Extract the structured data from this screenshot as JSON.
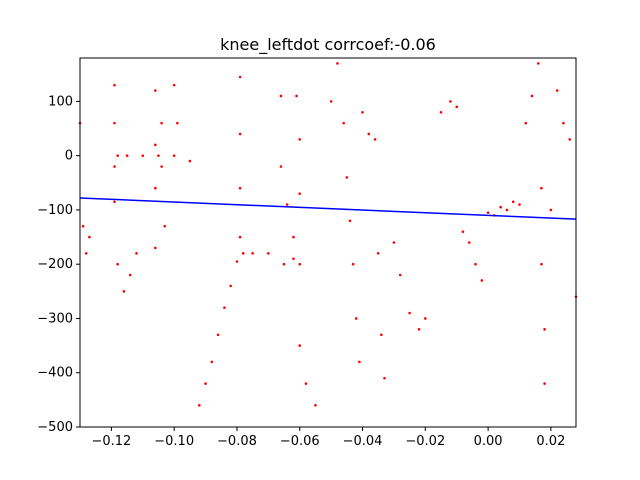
{
  "chart_data": {
    "type": "scatter",
    "title": "knee_leftdot corrcoef:-0.06",
    "xlabel": "",
    "ylabel": "",
    "xlim": [
      -0.13,
      0.028
    ],
    "ylim": [
      -500,
      180
    ],
    "x_ticks": [
      -0.12,
      -0.1,
      -0.08,
      -0.06,
      -0.04,
      -0.02,
      0.0,
      0.02
    ],
    "x_tick_labels": [
      "−0.12",
      "−0.10",
      "−0.08",
      "−0.06",
      "−0.04",
      "−0.02",
      "0.00",
      "0.02"
    ],
    "y_ticks": [
      -500,
      -400,
      -300,
      -200,
      -100,
      0,
      100
    ],
    "y_tick_labels": [
      "−500",
      "−400",
      "−300",
      "−200",
      "−100",
      "0",
      "100"
    ],
    "grid": false,
    "series": [
      {
        "kind": "scatter",
        "color": "#ff0000",
        "points": [
          [
            -0.13,
            60
          ],
          [
            -0.129,
            -130
          ],
          [
            -0.128,
            -180
          ],
          [
            -0.127,
            -150
          ],
          [
            -0.119,
            130
          ],
          [
            -0.119,
            60
          ],
          [
            -0.119,
            -20
          ],
          [
            -0.119,
            -85
          ],
          [
            -0.118,
            0
          ],
          [
            -0.115,
            0
          ],
          [
            -0.11,
            0
          ],
          [
            -0.105,
            0
          ],
          [
            -0.118,
            -200
          ],
          [
            -0.116,
            -250
          ],
          [
            -0.114,
            -220
          ],
          [
            -0.112,
            -180
          ],
          [
            -0.106,
            120
          ],
          [
            -0.106,
            20
          ],
          [
            -0.106,
            -60
          ],
          [
            -0.106,
            -170
          ],
          [
            -0.104,
            60
          ],
          [
            -0.104,
            -20
          ],
          [
            -0.103,
            -130
          ],
          [
            -0.1,
            130
          ],
          [
            -0.099,
            60
          ],
          [
            -0.1,
            0
          ],
          [
            -0.095,
            -10
          ],
          [
            -0.092,
            -460
          ],
          [
            -0.09,
            -420
          ],
          [
            -0.088,
            -380
          ],
          [
            -0.086,
            -330
          ],
          [
            -0.084,
            -280
          ],
          [
            -0.082,
            -240
          ],
          [
            -0.08,
            -195
          ],
          [
            -0.078,
            -180
          ],
          [
            -0.079,
            145
          ],
          [
            -0.079,
            40
          ],
          [
            -0.079,
            -60
          ],
          [
            -0.079,
            -150
          ],
          [
            -0.075,
            -180
          ],
          [
            -0.07,
            -180
          ],
          [
            -0.065,
            -200
          ],
          [
            -0.062,
            -190
          ],
          [
            -0.066,
            110
          ],
          [
            -0.066,
            -20
          ],
          [
            -0.064,
            -90
          ],
          [
            -0.062,
            -150
          ],
          [
            -0.061,
            110
          ],
          [
            -0.06,
            30
          ],
          [
            -0.06,
            -70
          ],
          [
            -0.06,
            -200
          ],
          [
            -0.06,
            -350
          ],
          [
            -0.058,
            -420
          ],
          [
            -0.055,
            -460
          ],
          [
            -0.05,
            100
          ],
          [
            -0.048,
            170
          ],
          [
            -0.046,
            60
          ],
          [
            -0.045,
            -40
          ],
          [
            -0.044,
            -120
          ],
          [
            -0.043,
            -200
          ],
          [
            -0.042,
            -300
          ],
          [
            -0.041,
            -380
          ],
          [
            -0.04,
            80
          ],
          [
            -0.038,
            40
          ],
          [
            -0.036,
            30
          ],
          [
            -0.035,
            -180
          ],
          [
            -0.034,
            -330
          ],
          [
            -0.033,
            -410
          ],
          [
            -0.03,
            -160
          ],
          [
            -0.028,
            -220
          ],
          [
            -0.025,
            -290
          ],
          [
            -0.022,
            -320
          ],
          [
            -0.02,
            -300
          ],
          [
            -0.015,
            80
          ],
          [
            -0.012,
            100
          ],
          [
            -0.01,
            90
          ],
          [
            -0.008,
            -140
          ],
          [
            -0.006,
            -160
          ],
          [
            -0.004,
            -200
          ],
          [
            -0.002,
            -230
          ],
          [
            0.0,
            -105
          ],
          [
            0.002,
            -110
          ],
          [
            0.004,
            -95
          ],
          [
            0.006,
            -100
          ],
          [
            0.008,
            -85
          ],
          [
            0.01,
            -90
          ],
          [
            0.012,
            60
          ],
          [
            0.014,
            110
          ],
          [
            0.016,
            170
          ],
          [
            0.017,
            -60
          ],
          [
            0.017,
            -200
          ],
          [
            0.018,
            -320
          ],
          [
            0.018,
            -420
          ],
          [
            0.02,
            -100
          ],
          [
            0.022,
            120
          ],
          [
            0.024,
            60
          ],
          [
            0.026,
            30
          ],
          [
            0.028,
            -260
          ]
        ]
      },
      {
        "kind": "line",
        "color": "#0000ff",
        "points": [
          [
            -0.13,
            -78
          ],
          [
            0.028,
            -117
          ]
        ]
      }
    ]
  }
}
